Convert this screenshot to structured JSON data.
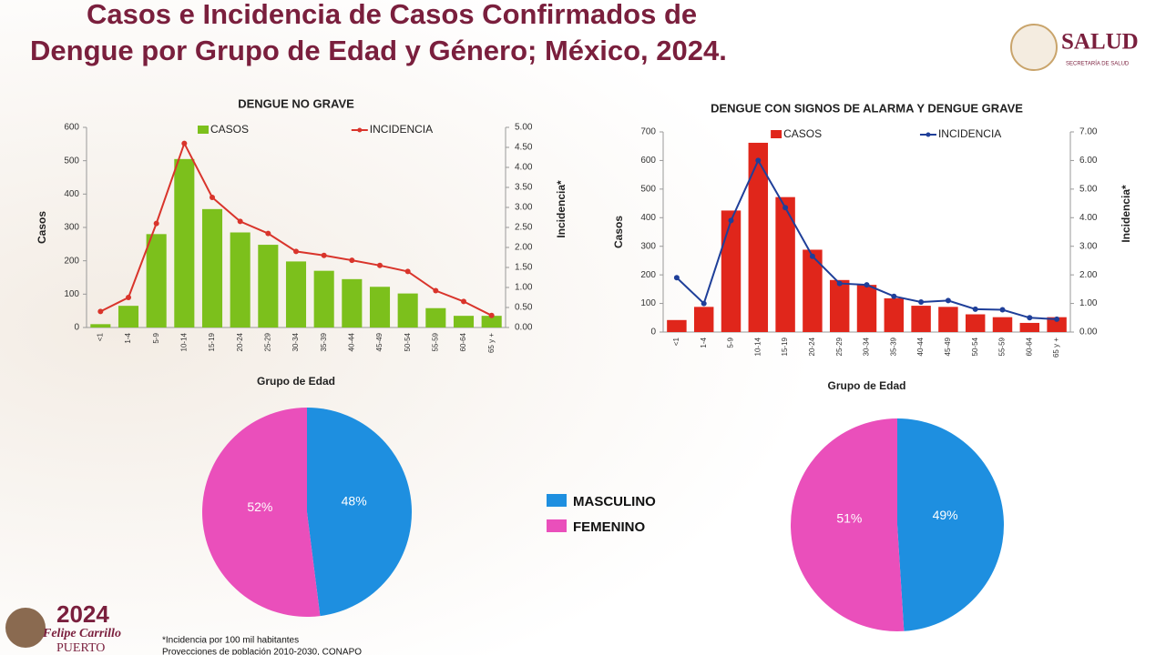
{
  "title": [
    "Casos e Incidencia de Casos Confirmados de",
    "Dengue por Grupo de Edad y Género; México, 2024."
  ],
  "logo": {
    "name": "SALUD",
    "subtitle": "SECRETARÍA DE SALUD"
  },
  "footer": {
    "year": "2024",
    "name": "Felipe Carrillo",
    "place": "PUERTO"
  },
  "footnote": [
    "*Incidencia por 100 mil habitantes",
    "Proyecciones de población 2010-2030, CONAPO"
  ],
  "chart_data": [
    {
      "type": "bar",
      "title": "DENGUE NO GRAVE",
      "x_label": "Grupo de Edad",
      "y_label": "Casos",
      "y2_label": "Incidencia*",
      "categories": [
        "<1",
        "1-4",
        "5-9",
        "10-14",
        "15-19",
        "20-24",
        "25-29",
        "30-34",
        "35-39",
        "40-44",
        "45-49",
        "50-54",
        "55-59",
        "60-64",
        "65 y +"
      ],
      "series": [
        {
          "name": "CASOS",
          "type": "bar",
          "color": "#7cc01c",
          "values": [
            10,
            65,
            280,
            505,
            355,
            285,
            248,
            198,
            170,
            145,
            122,
            102,
            58,
            35,
            35
          ]
        },
        {
          "name": "INCIDENCIA",
          "type": "line",
          "axis": "y2",
          "color": "#d9342b",
          "values": [
            0.4,
            0.75,
            2.6,
            4.6,
            3.25,
            2.65,
            2.35,
            1.9,
            1.8,
            1.68,
            1.55,
            1.4,
            0.92,
            0.65,
            0.3
          ]
        }
      ],
      "ylim": [
        0,
        600
      ],
      "yticks": [
        0,
        100,
        200,
        300,
        400,
        500,
        600
      ],
      "y2lim": [
        0,
        5
      ],
      "y2ticks": [
        {
          "value": 0,
          "label": "0.00"
        },
        {
          "value": 0.5,
          "label": "0.50"
        },
        {
          "value": 1,
          "label": "1.00"
        },
        {
          "value": 1.5,
          "label": "1.50"
        },
        {
          "value": 2,
          "label": "2.00"
        },
        {
          "value": 2.5,
          "label": "2.50"
        },
        {
          "value": 3,
          "label": "3.00"
        },
        {
          "value": 3.5,
          "label": "3.50"
        },
        {
          "value": 4,
          "label": "4.00"
        },
        {
          "value": 4.5,
          "label": "4.50"
        },
        {
          "value": 5,
          "label": "5.00"
        }
      ]
    },
    {
      "type": "bar",
      "title": "DENGUE CON SIGNOS DE ALARMA Y DENGUE GRAVE",
      "x_label": "Grupo de Edad",
      "y_label": "Casos",
      "y2_label": "Incidencia*",
      "categories": [
        "<1",
        "1-4",
        "5-9",
        "10-14",
        "15-19",
        "20-24",
        "25-29",
        "30-34",
        "35-39",
        "40-44",
        "45-49",
        "50-54",
        "55-59",
        "60-64",
        "65 y +"
      ],
      "series": [
        {
          "name": "CASOS",
          "type": "bar",
          "color": "#e0261b",
          "values": [
            42,
            88,
            425,
            662,
            472,
            288,
            182,
            165,
            118,
            92,
            88,
            62,
            52,
            32,
            52
          ]
        },
        {
          "name": "INCIDENCIA",
          "type": "line",
          "axis": "y2",
          "color": "#1f3f99",
          "values": [
            1.9,
            1.0,
            3.9,
            6.0,
            4.35,
            2.65,
            1.7,
            1.65,
            1.25,
            1.05,
            1.1,
            0.8,
            0.78,
            0.5,
            0.45
          ]
        }
      ],
      "ylim": [
        0,
        700
      ],
      "yticks": [
        0,
        100,
        200,
        300,
        400,
        500,
        600,
        700
      ],
      "y2lim": [
        0,
        7
      ],
      "y2ticks": [
        {
          "value": 0,
          "label": "0.00"
        },
        {
          "value": 1,
          "label": "1.00"
        },
        {
          "value": 2,
          "label": "2.00"
        },
        {
          "value": 3,
          "label": "3.00"
        },
        {
          "value": 4,
          "label": "4.00"
        },
        {
          "value": 5,
          "label": "5.00"
        },
        {
          "value": 6,
          "label": "6.00"
        },
        {
          "value": 7,
          "label": "7.00"
        }
      ]
    },
    {
      "type": "pie",
      "categories": [
        "MASCULINO",
        "FEMENINO"
      ],
      "values": [
        48,
        52
      ],
      "value_labels": [
        "48%",
        "52%"
      ],
      "colors": [
        "#1e8fe0",
        "#ea4fbb"
      ]
    },
    {
      "type": "pie",
      "categories": [
        "MASCULINO",
        "FEMENINO"
      ],
      "values": [
        49,
        51
      ],
      "value_labels": [
        "49%",
        "51%"
      ],
      "colors": [
        "#1e8fe0",
        "#ea4fbb"
      ]
    }
  ]
}
